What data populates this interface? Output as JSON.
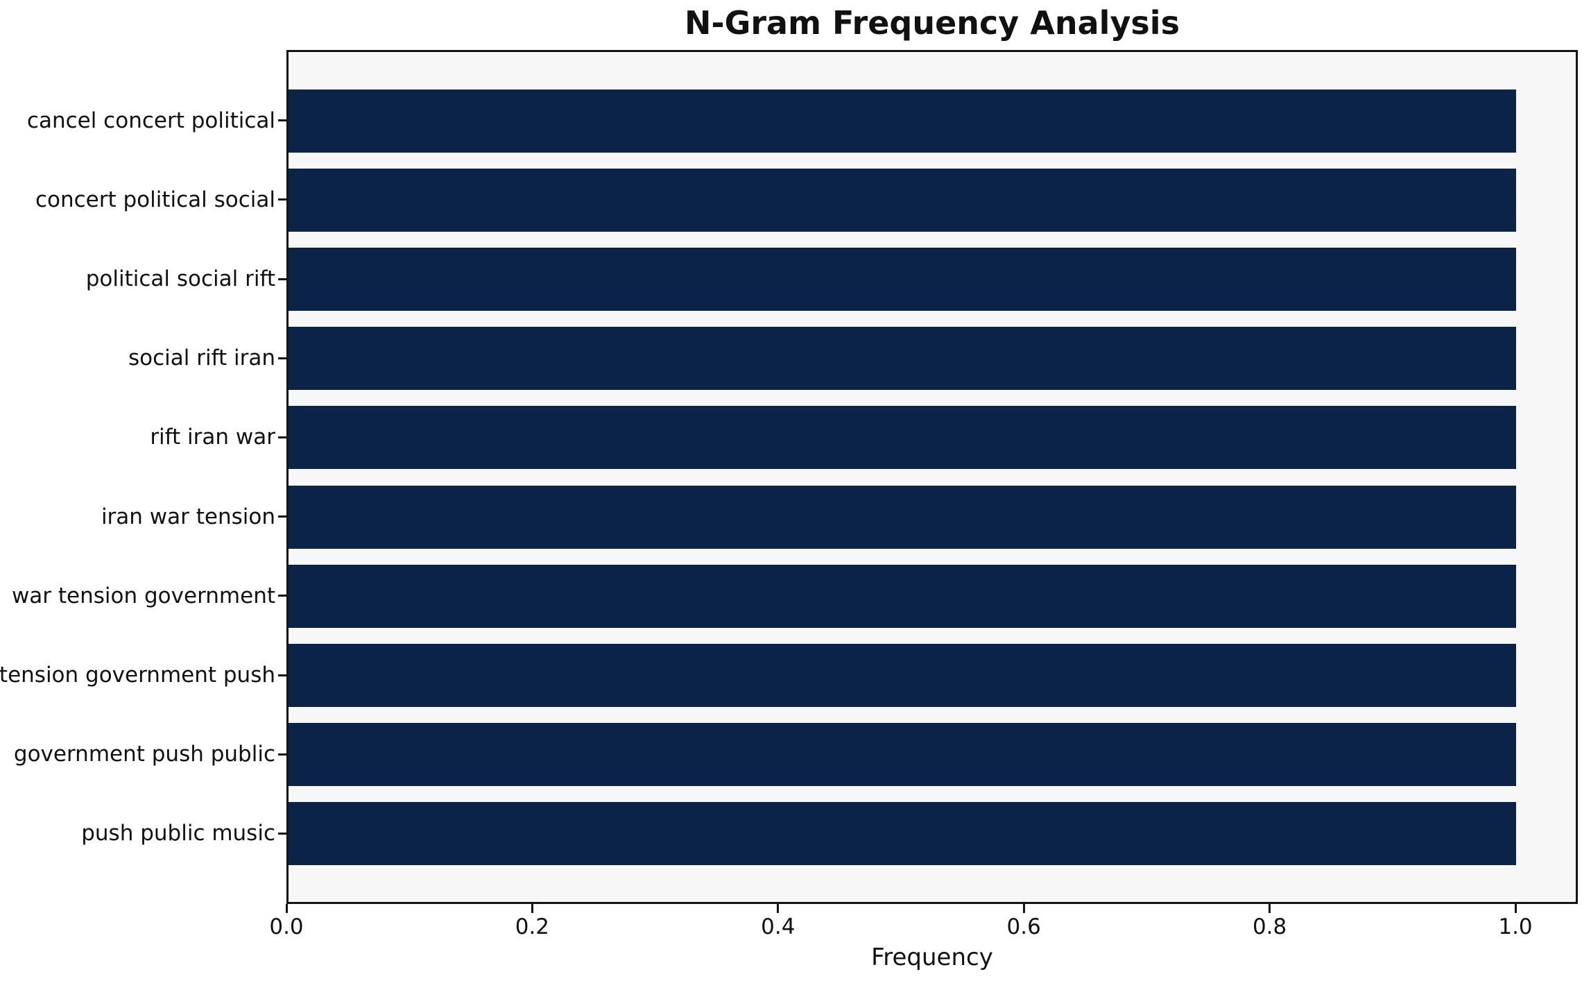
{
  "chart_data": {
    "type": "bar",
    "orientation": "horizontal",
    "title": "N-Gram Frequency Analysis",
    "xlabel": "Frequency",
    "ylabel": "",
    "categories": [
      "cancel concert political",
      "concert political social",
      "political social rift",
      "social rift iran",
      "rift iran war",
      "iran war tension",
      "war tension government",
      "tension government push",
      "government push public",
      "push public music"
    ],
    "values": [
      1.0,
      1.0,
      1.0,
      1.0,
      1.0,
      1.0,
      1.0,
      1.0,
      1.0,
      1.0
    ],
    "x_ticks": [
      "0.0",
      "0.2",
      "0.4",
      "0.6",
      "0.8",
      "1.0"
    ],
    "x_tick_values": [
      0.0,
      0.2,
      0.4,
      0.6,
      0.8,
      1.0
    ],
    "xlim": [
      0,
      1.05
    ],
    "grid": false,
    "legend": null,
    "colors": {
      "bar": "#0a2347",
      "plot_background": "#f7f7f7",
      "figure_background": "#ffffff",
      "spine": "#141414",
      "text": "#111111"
    }
  }
}
